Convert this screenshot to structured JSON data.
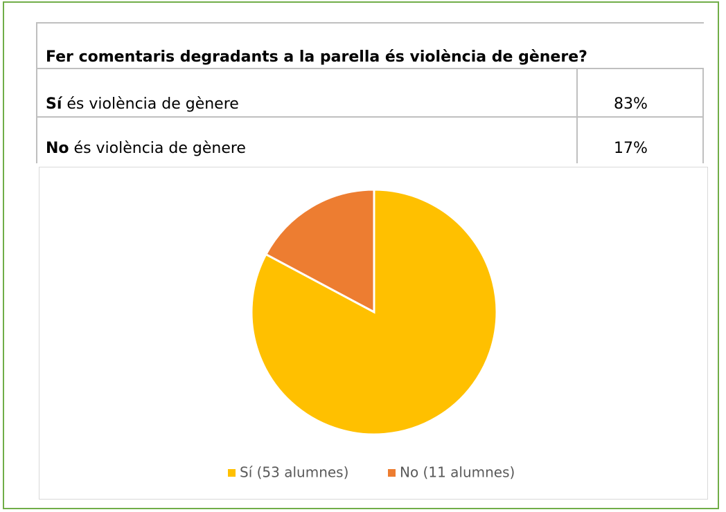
{
  "table": {
    "title": "Fer comentaris degradants a la parella és violència de gènere?",
    "rows": [
      {
        "bold": "Sí",
        "rest": "és violència de gènere",
        "share": "83%"
      },
      {
        "bold": "No",
        "rest": "és violència de gènere",
        "share": "17%"
      }
    ]
  },
  "chart_data": {
    "type": "pie",
    "categories": [
      "Sí (53 alumnes)",
      "No (11 alumnes)"
    ],
    "values": [
      53,
      11
    ],
    "colors": [
      "#FFC000",
      "#ED7D31"
    ],
    "legend": "bottom"
  }
}
